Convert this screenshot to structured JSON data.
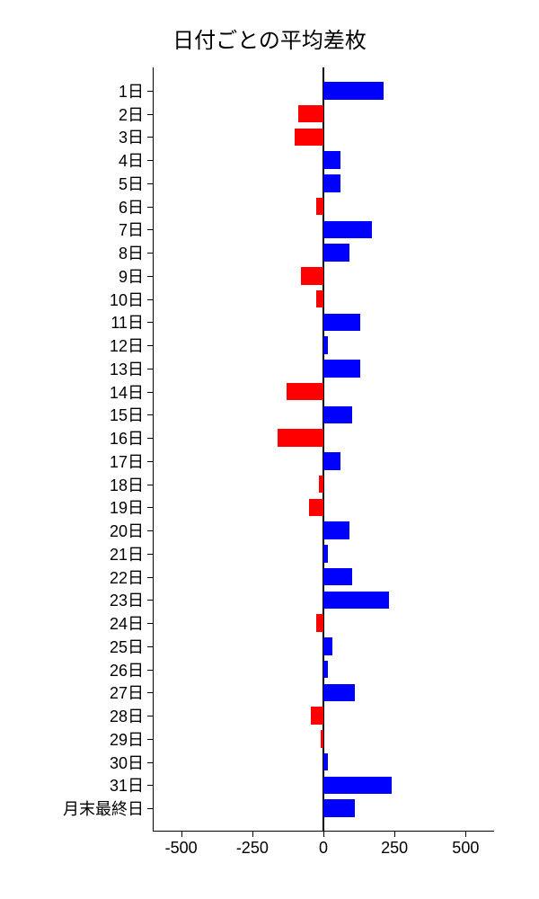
{
  "chart": {
    "type": "bar-horizontal",
    "title": "日付ごとの平均差枚",
    "title_fontsize": 24,
    "background_color": "#ffffff",
    "text_color": "#000000",
    "positive_color": "#0000ff",
    "negative_color": "#ff0000",
    "axis_color": "#000000",
    "xlim": [
      -600,
      600
    ],
    "xticks": [
      -500,
      -250,
      0,
      250,
      500
    ],
    "bar_height_ratio": 0.75,
    "categories": [
      "1日",
      "2日",
      "3日",
      "4日",
      "5日",
      "6日",
      "7日",
      "8日",
      "9日",
      "10日",
      "11日",
      "12日",
      "13日",
      "14日",
      "15日",
      "16日",
      "17日",
      "18日",
      "19日",
      "20日",
      "21日",
      "22日",
      "23日",
      "24日",
      "25日",
      "26日",
      "27日",
      "28日",
      "29日",
      "30日",
      "31日",
      "月末最終日"
    ],
    "values": [
      210,
      -90,
      -100,
      60,
      60,
      -25,
      170,
      90,
      -80,
      -25,
      130,
      15,
      130,
      -130,
      100,
      -160,
      60,
      -15,
      -50,
      90,
      15,
      100,
      230,
      -25,
      30,
      15,
      110,
      -45,
      -10,
      15,
      240,
      110
    ],
    "label_fontsize": 18,
    "tick_fontsize": 18
  }
}
